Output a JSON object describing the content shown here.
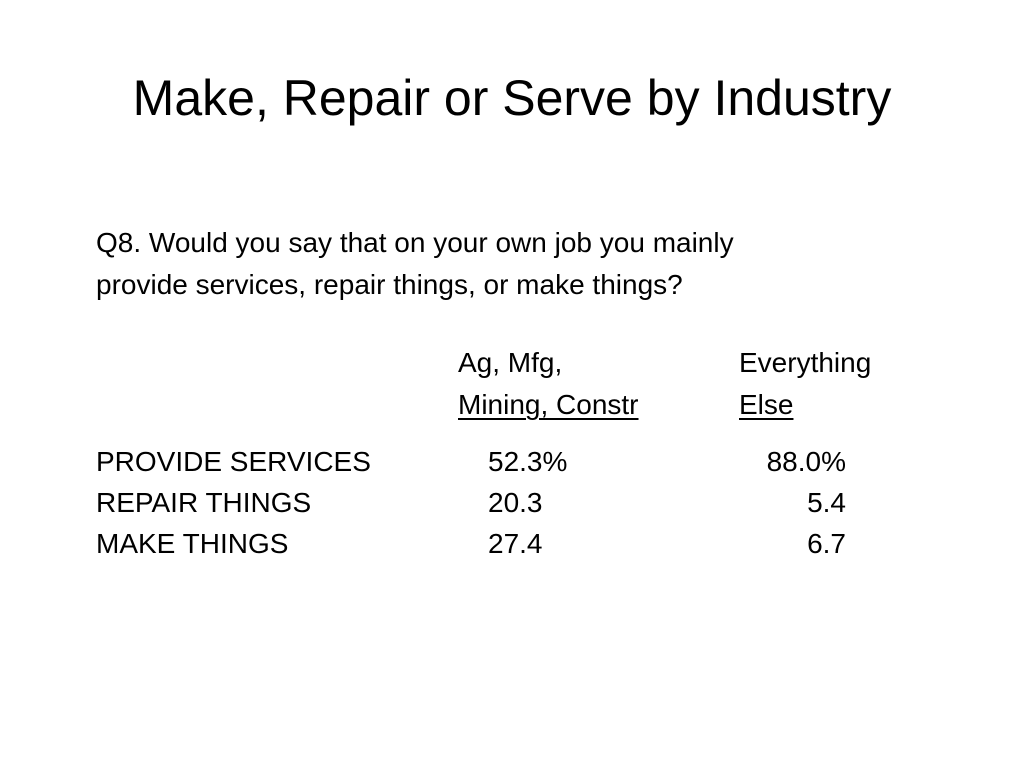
{
  "title": "Make, Repair or Serve by Industry",
  "question": {
    "line1": "Q8.  Would you say that on your own job you mainly",
    "line2": "provide services, repair things, or make things?"
  },
  "columns": [
    {
      "line1": "Ag, Mfg,",
      "line2": "Mining, Constr"
    },
    {
      "line1": "Everything",
      "line2": "Else"
    }
  ],
  "rows": [
    {
      "label": "PROVIDE SERVICES",
      "ag_mfg_mining_constr": "52.3%",
      "everything_else": "88.0%"
    },
    {
      "label": "REPAIR THINGS",
      "ag_mfg_mining_constr": "20.3",
      "everything_else": "5.4"
    },
    {
      "label": "MAKE THINGS",
      "ag_mfg_mining_constr": "27.4",
      "everything_else": "6.7"
    }
  ]
}
